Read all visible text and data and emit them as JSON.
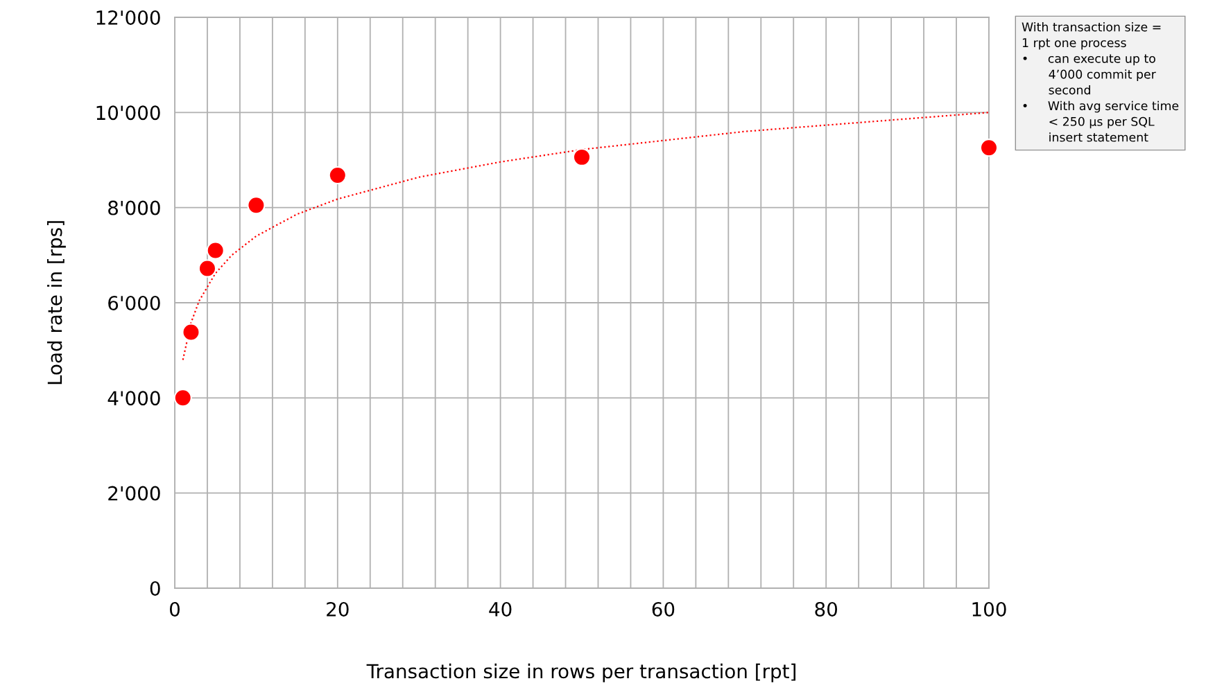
{
  "chart_data": {
    "type": "scatter",
    "xlabel": "Transaction size in rows per transaction [rpt]",
    "ylabel": "Load rate in [rps]",
    "series": [
      {
        "color": "#ff0000",
        "marker": "circle",
        "x": [
          1,
          2,
          4,
          5,
          10,
          20,
          50,
          100
        ],
        "values": [
          4000,
          5380,
          6720,
          7100,
          8050,
          8680,
          9060,
          9260
        ]
      },
      {
        "type": "line",
        "color": "#ff0000",
        "line_style": "dotted",
        "marker": "none",
        "x": [
          1,
          2,
          3,
          5,
          7,
          10,
          15,
          20,
          30,
          40,
          50,
          70,
          100
        ],
        "values": [
          4800,
          5580,
          6040,
          6620,
          7000,
          7400,
          7860,
          8180,
          8640,
          8960,
          9220,
          9600,
          10000
        ]
      }
    ],
    "xlim": [
      0,
      100
    ],
    "ylim": [
      0,
      12000
    ],
    "xticks": [
      0,
      {
        "value": 4,
        "label": null
      },
      {
        "value": 8,
        "label": null
      },
      {
        "value": 12,
        "label": null
      },
      {
        "value": 16,
        "label": null
      },
      20,
      {
        "value": 24,
        "label": null
      },
      {
        "value": 28,
        "label": null
      },
      {
        "value": 32,
        "label": null
      },
      {
        "value": 36,
        "label": null
      },
      40,
      {
        "value": 44,
        "label": null
      },
      {
        "value": 48,
        "label": null
      },
      {
        "value": 52,
        "label": null
      },
      {
        "value": 56,
        "label": null
      },
      60,
      {
        "value": 64,
        "label": null
      },
      {
        "value": 68,
        "label": null
      },
      {
        "value": 72,
        "label": null
      },
      {
        "value": 76,
        "label": null
      },
      80,
      {
        "value": 84,
        "label": null
      },
      {
        "value": 88,
        "label": null
      },
      {
        "value": 92,
        "label": null
      },
      {
        "value": 96,
        "label": null
      },
      100
    ],
    "yticks": [
      0,
      {
        "value": 2000,
        "label": "2'000"
      },
      {
        "value": 4000,
        "label": "4'000"
      },
      {
        "value": 6000,
        "label": "6'000"
      },
      {
        "value": 8000,
        "label": "8'000"
      },
      {
        "value": 10000,
        "label": "10'000"
      },
      {
        "value": 12000,
        "label": "12'000"
      }
    ],
    "grid": true,
    "annotations": [
      "With transaction size =\n1 rpt one process\n•     can execute up to\n       4’000 commit per\n       second\n•     With avg service time\n       < 250 µs per SQL\n       insert statement"
    ]
  }
}
